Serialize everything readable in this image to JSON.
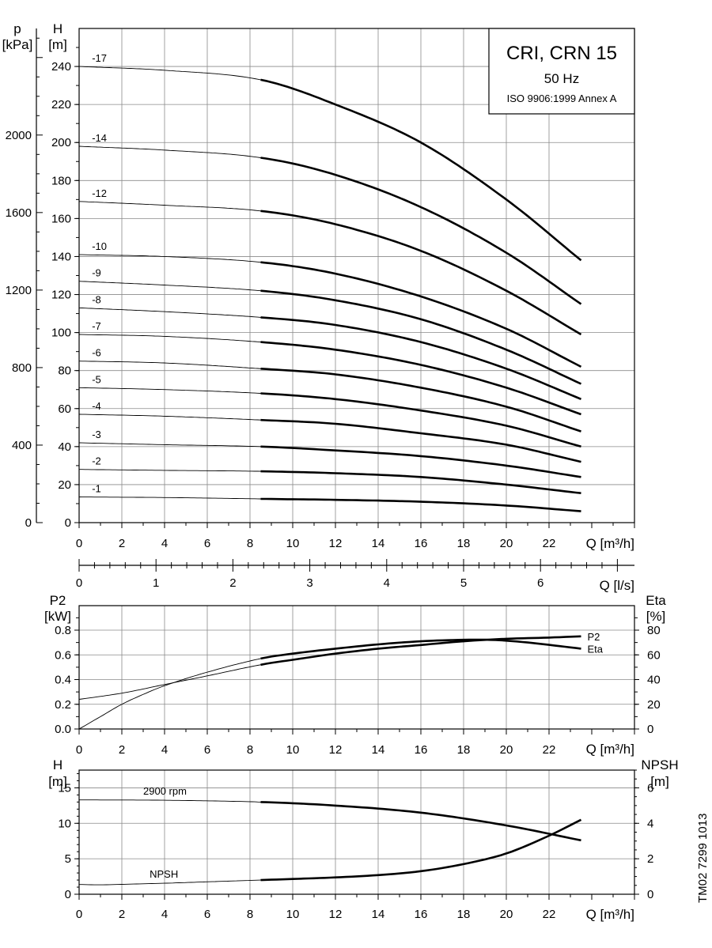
{
  "title_box": {
    "model": "CRI, CRN 15",
    "frequency": "50 Hz",
    "standard": "ISO 9906:1999 Annex A"
  },
  "doc_id": "TM02 7299 1013",
  "chart_data": [
    {
      "type": "line",
      "panel": "head",
      "ylabel_left": "H",
      "yunit_left": "[m]",
      "ylabel_outer": "p",
      "yunit_outer": "[kPa]",
      "xlabel": "Q [m³/h]",
      "x_ticks": [
        "0",
        "2",
        "4",
        "6",
        "8",
        "10",
        "12",
        "14",
        "16",
        "18",
        "20",
        "22"
      ],
      "y_ticks": [
        "0",
        "20",
        "40",
        "60",
        "80",
        "100",
        "120",
        "140",
        "160",
        "180",
        "200",
        "220",
        "240"
      ],
      "kpa_ticks": [
        "0",
        "400",
        "800",
        "1200",
        "1600",
        "2000"
      ],
      "xlim": [
        0,
        26
      ],
      "ylim": [
        0,
        260
      ],
      "kpa_range": [
        0,
        2550
      ],
      "grid": true,
      "op_range": [
        8.5,
        23.5
      ],
      "series": [
        {
          "name": "-17",
          "values": [
            [
              0,
              240
            ],
            [
              4,
              238
            ],
            [
              8.5,
              233
            ],
            [
              12,
              220
            ],
            [
              16,
              200
            ],
            [
              20,
              170
            ],
            [
              23.5,
              138
            ]
          ]
        },
        {
          "name": "-14",
          "values": [
            [
              0,
              198
            ],
            [
              4,
              196
            ],
            [
              8.5,
              192
            ],
            [
              12,
              183
            ],
            [
              16,
              166
            ],
            [
              20,
              142
            ],
            [
              23.5,
              115
            ]
          ]
        },
        {
          "name": "-12",
          "values": [
            [
              0,
              169
            ],
            [
              4,
              167
            ],
            [
              8.5,
              164
            ],
            [
              12,
              157
            ],
            [
              16,
              143
            ],
            [
              20,
              122
            ],
            [
              23.5,
              99
            ]
          ]
        },
        {
          "name": "-10",
          "values": [
            [
              0,
              141
            ],
            [
              4,
              140
            ],
            [
              8.5,
              137
            ],
            [
              12,
              131
            ],
            [
              16,
              119
            ],
            [
              20,
              102
            ],
            [
              23.5,
              82
            ]
          ]
        },
        {
          "name": "-9",
          "values": [
            [
              0,
              127
            ],
            [
              4,
              125
            ],
            [
              8.5,
              122
            ],
            [
              12,
              117
            ],
            [
              16,
              107
            ],
            [
              20,
              91
            ],
            [
              23.5,
              73
            ]
          ]
        },
        {
          "name": "-8",
          "values": [
            [
              0,
              113
            ],
            [
              4,
              111
            ],
            [
              8.5,
              108
            ],
            [
              12,
              104
            ],
            [
              16,
              95
            ],
            [
              20,
              81
            ],
            [
              23.5,
              65
            ]
          ]
        },
        {
          "name": "-7",
          "values": [
            [
              0,
              99
            ],
            [
              4,
              98
            ],
            [
              8.5,
              95
            ],
            [
              12,
              91
            ],
            [
              16,
              83
            ],
            [
              20,
              71
            ],
            [
              23.5,
              57
            ]
          ]
        },
        {
          "name": "-6",
          "values": [
            [
              0,
              85
            ],
            [
              4,
              84
            ],
            [
              8.5,
              81
            ],
            [
              12,
              78
            ],
            [
              16,
              71
            ],
            [
              20,
              61
            ],
            [
              23.5,
              48
            ]
          ]
        },
        {
          "name": "-5",
          "values": [
            [
              0,
              71
            ],
            [
              4,
              70
            ],
            [
              8.5,
              68
            ],
            [
              12,
              65
            ],
            [
              16,
              59
            ],
            [
              20,
              51
            ],
            [
              23.5,
              40
            ]
          ]
        },
        {
          "name": "-4",
          "values": [
            [
              0,
              57
            ],
            [
              4,
              56
            ],
            [
              8.5,
              54
            ],
            [
              12,
              52
            ],
            [
              16,
              47
            ],
            [
              20,
              41
            ],
            [
              23.5,
              32
            ]
          ]
        },
        {
          "name": "-3",
          "values": [
            [
              0,
              42
            ],
            [
              4,
              41
            ],
            [
              8.5,
              40
            ],
            [
              12,
              38
            ],
            [
              16,
              35
            ],
            [
              20,
              30
            ],
            [
              23.5,
              24
            ]
          ]
        },
        {
          "name": "-2",
          "values": [
            [
              0,
              28
            ],
            [
              4,
              27.5
            ],
            [
              8.5,
              27
            ],
            [
              12,
              26
            ],
            [
              16,
              24
            ],
            [
              20,
              20
            ],
            [
              23.5,
              15.5
            ]
          ]
        },
        {
          "name": "-1",
          "values": [
            [
              0,
              13.5
            ],
            [
              4,
              13.2
            ],
            [
              8.5,
              12.5
            ],
            [
              12,
              12
            ],
            [
              16,
              11
            ],
            [
              20,
              9
            ],
            [
              23.5,
              6
            ]
          ]
        }
      ]
    },
    {
      "type": "line",
      "panel": "secondary-axis",
      "xlabel": "Q [l/s]",
      "x_ticks": [
        "0",
        "1",
        "2",
        "3",
        "4",
        "5",
        "6"
      ],
      "xlim": [
        0,
        7.2222
      ]
    },
    {
      "type": "line",
      "panel": "power-efficiency",
      "ylabel_left": "P2",
      "yunit_left": "[kW]",
      "ylabel_right": "Eta",
      "yunit_right": "[%]",
      "xlabel": "Q [m³/h]",
      "x_ticks": [
        "0",
        "2",
        "4",
        "6",
        "8",
        "10",
        "12",
        "14",
        "16",
        "18",
        "20",
        "22"
      ],
      "y_ticks_left": [
        "0.0",
        "0.2",
        "0.4",
        "0.6",
        "0.8"
      ],
      "y_ticks_right": [
        "0",
        "20",
        "40",
        "60",
        "80"
      ],
      "xlim": [
        0,
        26
      ],
      "ylim_left": [
        0,
        0.8
      ],
      "ylim_right": [
        0,
        80
      ],
      "grid": true,
      "op_range": [
        8.5,
        23.5
      ],
      "series": [
        {
          "name": "P2",
          "axis": "left",
          "values": [
            [
              0,
              0.24
            ],
            [
              2,
              0.29
            ],
            [
              4,
              0.36
            ],
            [
              6,
              0.43
            ],
            [
              8.5,
              0.52
            ],
            [
              10,
              0.56
            ],
            [
              12,
              0.61
            ],
            [
              14,
              0.65
            ],
            [
              16,
              0.68
            ],
            [
              18,
              0.71
            ],
            [
              20,
              0.73
            ],
            [
              22,
              0.74
            ],
            [
              23.5,
              0.75
            ]
          ]
        },
        {
          "name": "Eta",
          "axis": "right",
          "values": [
            [
              0,
              0
            ],
            [
              1,
              10
            ],
            [
              2,
              20
            ],
            [
              3,
              28
            ],
            [
              4,
              35
            ],
            [
              6,
              46
            ],
            [
              8.5,
              57
            ],
            [
              10,
              61
            ],
            [
              12,
              65
            ],
            [
              14,
              68.5
            ],
            [
              16,
              71
            ],
            [
              18,
              72.2
            ],
            [
              19.5,
              72
            ],
            [
              21,
              70
            ],
            [
              23.5,
              65
            ]
          ]
        }
      ]
    },
    {
      "type": "line",
      "panel": "npsh",
      "ylabel_left": "H",
      "yunit_left": "[m]",
      "ylabel_right": "NPSH",
      "yunit_right": "[m]",
      "xlabel": "Q [m³/h]",
      "x_ticks": [
        "0",
        "2",
        "4",
        "6",
        "8",
        "10",
        "12",
        "14",
        "16",
        "18",
        "20",
        "22"
      ],
      "y_ticks_left": [
        "0",
        "5",
        "10",
        "15"
      ],
      "y_ticks_right": [
        "0",
        "2",
        "4",
        "6"
      ],
      "xlim": [
        0,
        26
      ],
      "ylim_left": [
        0,
        17.5
      ],
      "ylim_right": [
        0,
        7
      ],
      "grid": true,
      "op_range": [
        8.5,
        23.5
      ],
      "series": [
        {
          "name": "2900 rpm",
          "axis": "left",
          "values": [
            [
              0,
              13.3
            ],
            [
              4,
              13.25
            ],
            [
              8.5,
              13.0
            ],
            [
              12,
              12.5
            ],
            [
              16,
              11.5
            ],
            [
              20,
              9.7
            ],
            [
              23.5,
              7.6
            ]
          ]
        },
        {
          "name": "NPSH",
          "axis": "right",
          "values": [
            [
              0,
              0.55
            ],
            [
              1,
              0.53
            ],
            [
              2,
              0.56
            ],
            [
              4,
              0.62
            ],
            [
              6,
              0.7
            ],
            [
              8.5,
              0.8
            ],
            [
              10,
              0.86
            ],
            [
              12,
              0.95
            ],
            [
              14,
              1.08
            ],
            [
              16,
              1.3
            ],
            [
              18,
              1.7
            ],
            [
              20,
              2.3
            ],
            [
              22,
              3.3
            ],
            [
              23.5,
              4.2
            ]
          ]
        }
      ]
    }
  ]
}
